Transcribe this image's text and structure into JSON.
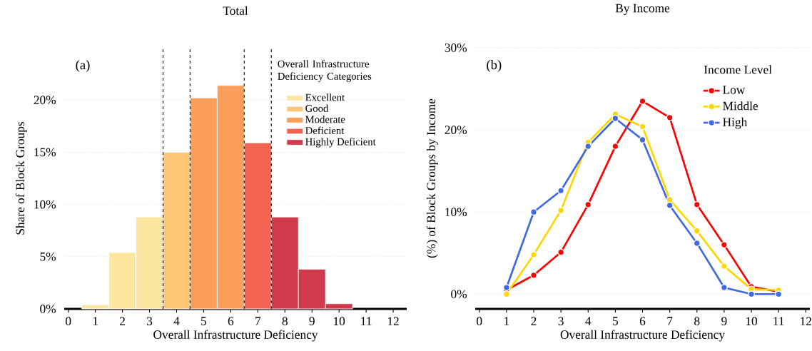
{
  "chart_data": [
    {
      "type": "histogram",
      "title": "Total",
      "xlabel": "Overall Infrastructure Deficiency",
      "ylabel": "Share of Block Groups",
      "legend_title": "Overall Infrastructure Deficiency Categories",
      "annotations": [
        "(a)"
      ],
      "bins": [
        0.5,
        1.5,
        2.5,
        3.5,
        4.5,
        5.5,
        6.5,
        7.5,
        8.5,
        9.5,
        10.5
      ],
      "series": [
        {
          "name": "Excellent",
          "color": "#fde6a0",
          "values": [
            0.4,
            5.4,
            8.8,
            null,
            null,
            null,
            null,
            null,
            null,
            null
          ]
        },
        {
          "name": "Good",
          "color": "#fcc676",
          "values": [
            null,
            null,
            null,
            15.0,
            null,
            null,
            null,
            null,
            null,
            null
          ]
        },
        {
          "name": "Moderate",
          "color": "#fb9e5c",
          "values": [
            null,
            null,
            null,
            null,
            20.2,
            21.4,
            null,
            null,
            null,
            null
          ]
        },
        {
          "name": "Deficient",
          "color": "#f26351",
          "values": [
            null,
            null,
            null,
            null,
            null,
            null,
            15.9,
            null,
            null,
            null
          ]
        },
        {
          "name": "Highly Deficient",
          "color": "#d13a4c",
          "values": [
            null,
            null,
            null,
            null,
            null,
            null,
            null,
            8.8,
            3.8,
            0.5
          ]
        }
      ],
      "ref_lines": [
        {
          "axis": "x",
          "value": 3.5,
          "line_style": "dashed"
        },
        {
          "axis": "x",
          "value": 4.5,
          "line_style": "dashed"
        },
        {
          "axis": "x",
          "value": 6.5,
          "line_style": "dashed"
        },
        {
          "axis": "x",
          "value": 7.5,
          "line_style": "dashed"
        }
      ],
      "xlim": [
        -0.15,
        12.5
      ],
      "xticks": [
        0,
        1,
        2,
        3,
        4,
        5,
        6,
        7,
        8,
        9,
        10,
        11,
        12
      ],
      "ylim": [
        0,
        25
      ],
      "yticks": [
        {
          "value": 0,
          "label": "0%"
        },
        {
          "value": 5,
          "label": "5%"
        },
        {
          "value": 10,
          "label": "10%"
        },
        {
          "value": 15,
          "label": "15%"
        },
        {
          "value": 20,
          "label": "20%"
        }
      ],
      "grid": "y",
      "legend": "top right"
    },
    {
      "type": "line",
      "title": "By Income",
      "xlabel": "Overall Infrastructure Deficiency",
      "ylabel": "(%) of Block Groups by Income",
      "legend_title": "Income Level",
      "annotations": [
        "(b)"
      ],
      "x": [
        1,
        2,
        3,
        4,
        5,
        6,
        7,
        8,
        9,
        10,
        11
      ],
      "series": [
        {
          "name": "Low",
          "color": "#ff0000",
          "values": [
            0.5,
            2.3,
            5.1,
            10.9,
            18.0,
            23.5,
            21.5,
            10.9,
            6.0,
            0.9,
            0.3
          ]
        },
        {
          "name": "Middle",
          "color": "#ffd700",
          "values": [
            0,
            4.8,
            10.2,
            18.5,
            21.9,
            20.4,
            11.5,
            7.7,
            3.4,
            0.6,
            0.5
          ]
        },
        {
          "name": "High",
          "color": "#4169e1",
          "values": [
            0.8,
            10.0,
            12.6,
            18.0,
            21.4,
            18.8,
            10.8,
            6.2,
            0.8,
            0,
            0
          ]
        }
      ],
      "xlim": [
        -0.15,
        12.15
      ],
      "xticks": [
        0,
        1,
        2,
        3,
        4,
        5,
        6,
        7,
        8,
        9,
        10,
        11,
        12
      ],
      "ylim": [
        -1.8,
        30
      ],
      "yticks": [
        {
          "value": 0,
          "label": "0%"
        },
        {
          "value": 10,
          "label": "10%"
        },
        {
          "value": 20,
          "label": "20%"
        },
        {
          "value": 30,
          "label": "30%"
        }
      ],
      "grid": "y",
      "legend": "top right",
      "marker": "circle",
      "line_style": "solid"
    }
  ]
}
